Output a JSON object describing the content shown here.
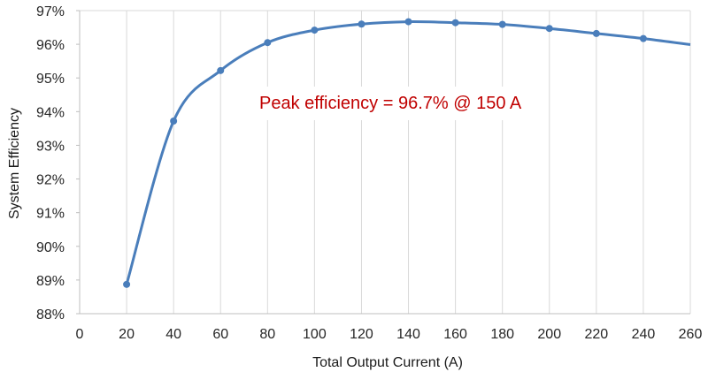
{
  "chart_data": {
    "type": "line",
    "title": "",
    "xlabel": "Total Output Current (A)",
    "ylabel": "System Efficiency",
    "xlim": [
      0,
      260
    ],
    "ylim": [
      88,
      97
    ],
    "x_ticks": [
      "0",
      "20",
      "40",
      "60",
      "80",
      "100",
      "120",
      "140",
      "160",
      "180",
      "200",
      "220",
      "240",
      "260"
    ],
    "y_ticks": [
      "88%",
      "89%",
      "90%",
      "91%",
      "92%",
      "93%",
      "94%",
      "95%",
      "96%",
      "97%"
    ],
    "grid": "vertical",
    "smooth": true,
    "series": [
      {
        "color": "#4a7ebb",
        "x": [
          20,
          40,
          60,
          80,
          100,
          120,
          140,
          160,
          180,
          200,
          220,
          240
        ],
        "y": [
          88.87,
          93.72,
          95.22,
          96.05,
          96.42,
          96.6,
          96.67,
          96.64,
          96.59,
          96.47,
          96.32,
          96.17
        ],
        "line_end": {
          "x": 260,
          "y": 95.99
        }
      }
    ],
    "annotation": {
      "text": "Peak efficiency = 96.7% @ 150 A",
      "color": "#c00000"
    }
  }
}
